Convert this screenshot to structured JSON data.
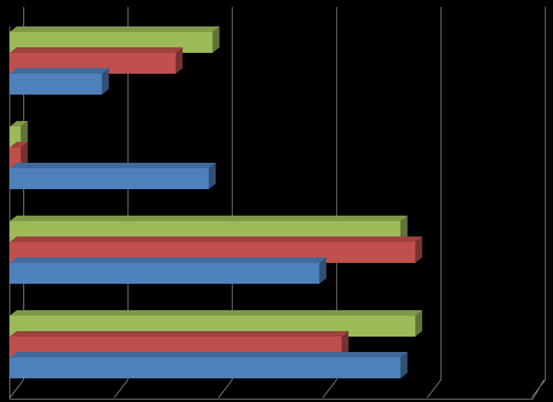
{
  "chart_data": {
    "type": "bar",
    "orientation": "horizontal",
    "style": "3d-clustered",
    "categories": [
      "",
      "",
      "",
      ""
    ],
    "series": [
      {
        "color": "#4F81BD",
        "values": [
          10.6,
          8.4,
          5.4,
          2.5
        ]
      },
      {
        "color": "#C0504D",
        "values": [
          9.0,
          11.0,
          0.3,
          4.5
        ]
      },
      {
        "color": "#9BBB59",
        "values": [
          11.0,
          10.6,
          0.3,
          5.5
        ]
      }
    ],
    "xlim": [
      0,
      12.5
    ],
    "gridlines": true,
    "legend": "none",
    "title": "",
    "xlabel": "",
    "ylabel": ""
  }
}
